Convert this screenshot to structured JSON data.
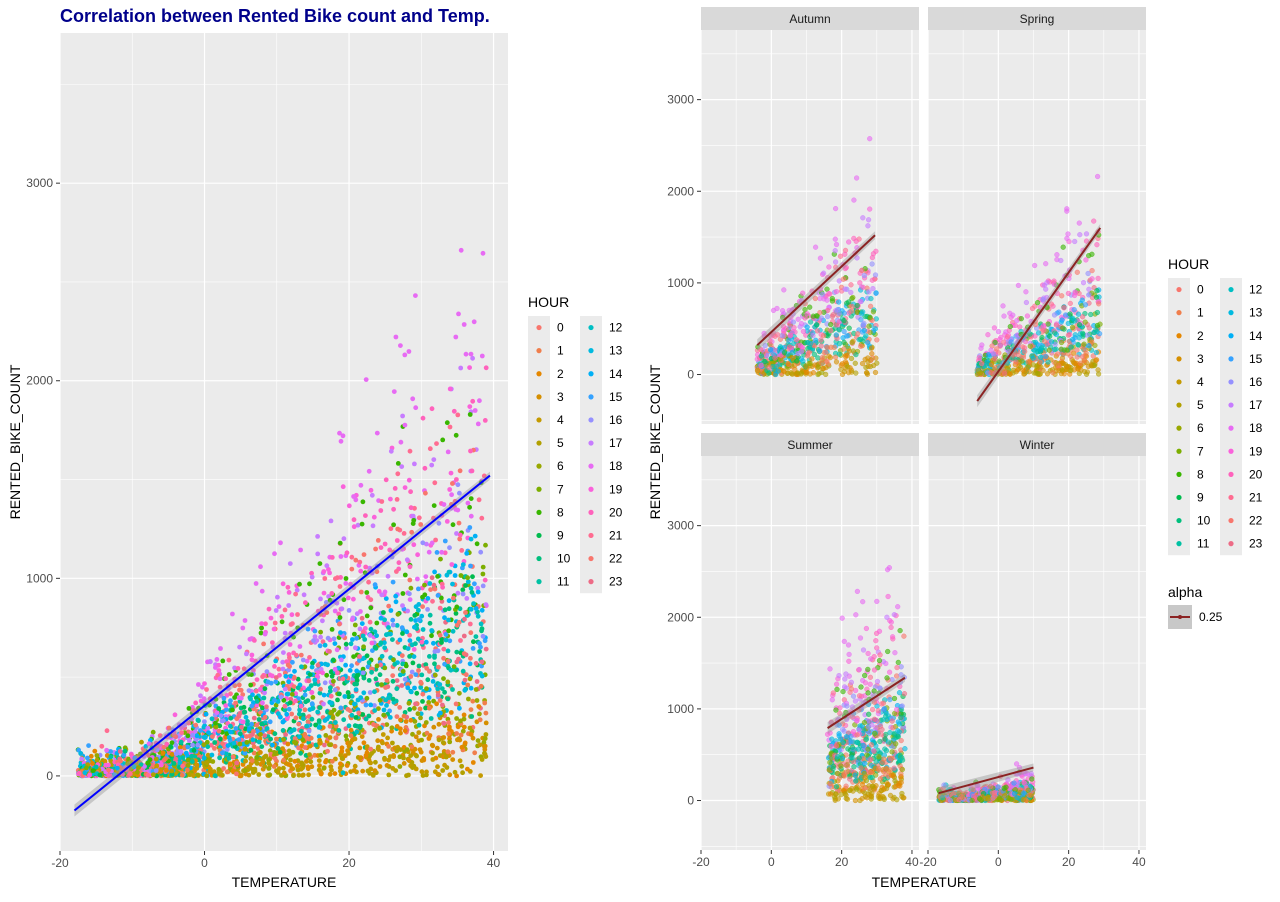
{
  "colors": {
    "panel_bg": "#ebebeb",
    "grid": "#ffffff",
    "strip_bg": "#d9d9d9",
    "title": "#00008b",
    "main_line": "#0000ff",
    "facet_line": "#8b2323",
    "ribbon": "#999999"
  },
  "hour_colors": [
    "#f8766d",
    "#f07e4c",
    "#e58700",
    "#d58f00",
    "#c49a00",
    "#b2a000",
    "#99a800",
    "#7cae00",
    "#39b600",
    "#00bb4e",
    "#00bf7d",
    "#00c1a3",
    "#00bfc4",
    "#00bae0",
    "#00b0f6",
    "#35a2ff",
    "#9590ff",
    "#c77cff",
    "#e76bf3",
    "#fa62db",
    "#ff62bc",
    "#ff6c91",
    "#f8766d",
    "#ed6b86"
  ],
  "chart_data": [
    {
      "type": "scatter",
      "title": "Correlation between Rented Bike count and Temp.",
      "xlabel": "TEMPERATURE",
      "ylabel": "RENTED_BIKE_COUNT",
      "xlim": [
        -20,
        42
      ],
      "ylim": [
        -380,
        3760
      ],
      "x_ticks": [
        -20,
        0,
        20,
        40
      ],
      "y_ticks": [
        0,
        1000,
        2000,
        3000
      ],
      "grid": true,
      "color_by": "HOUR",
      "trend": {
        "method": "lm",
        "x": [
          -18,
          39.5
        ],
        "y": [
          -175,
          1520
        ]
      }
    },
    {
      "type": "scatter",
      "facets": [
        "Autumn",
        "Spring",
        "Summer",
        "Winter"
      ],
      "layout": "2x2",
      "xlabel": "TEMPERATURE",
      "ylabel": "RENTED_BIKE_COUNT",
      "xlim": [
        -20,
        42
      ],
      "ylim": [
        -540,
        3760
      ],
      "x_ticks": [
        -20,
        0,
        20,
        40
      ],
      "y_ticks": [
        0,
        1000,
        2000,
        3000
      ],
      "grid": true,
      "color_by": "HOUR",
      "alpha": 0.25,
      "panels": [
        {
          "name": "Autumn",
          "xrange": [
            -4,
            30
          ],
          "trend": {
            "x": [
              -4,
              29.5
            ],
            "y": [
              320,
              1520
            ]
          }
        },
        {
          "name": "Spring",
          "xrange": [
            -6,
            29
          ],
          "trend": {
            "x": [
              -6,
              29
            ],
            "y": [
              -290,
              1600
            ]
          }
        },
        {
          "name": "Summer",
          "xrange": [
            16,
            38
          ],
          "trend": {
            "x": [
              16,
              38
            ],
            "y": [
              790,
              1340
            ]
          }
        },
        {
          "name": "Winter",
          "xrange": [
            -17,
            10
          ],
          "trend": {
            "x": [
              -17,
              10
            ],
            "y": [
              80,
              360
            ]
          }
        }
      ]
    }
  ],
  "legend1": {
    "title": "HOUR",
    "items": [
      "0",
      "1",
      "2",
      "3",
      "4",
      "5",
      "6",
      "7",
      "8",
      "9",
      "10",
      "11",
      "12",
      "13",
      "14",
      "15",
      "16",
      "17",
      "18",
      "19",
      "20",
      "21",
      "22",
      "23"
    ]
  },
  "legend2": {
    "title": "HOUR",
    "items": [
      "0",
      "1",
      "2",
      "3",
      "4",
      "5",
      "6",
      "7",
      "8",
      "9",
      "10",
      "11",
      "12",
      "13",
      "14",
      "15",
      "16",
      "17",
      "18",
      "19",
      "20",
      "21",
      "22",
      "23"
    ]
  },
  "legend_alpha": {
    "title": "alpha",
    "label": "0.25"
  }
}
